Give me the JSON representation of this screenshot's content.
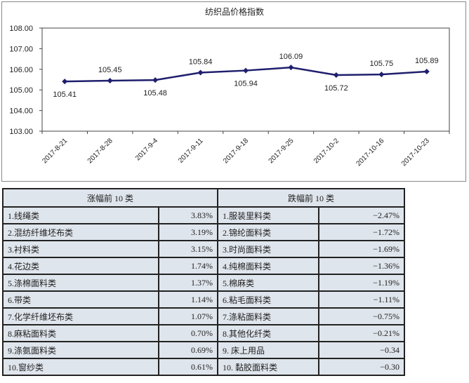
{
  "chart_data": {
    "type": "line",
    "title": "纺织品价格指数",
    "categories": [
      "2017-8-21",
      "2017-8-28",
      "2017-9-4",
      "2017-9-11",
      "2017-9-18",
      "2017-9-25",
      "2017-10-2",
      "2017-10-16",
      "2017-10-23"
    ],
    "values": [
      105.41,
      105.45,
      105.48,
      105.84,
      105.94,
      106.09,
      105.72,
      105.75,
      105.89
    ],
    "data_labels": [
      "105.41",
      "105.45",
      "105.48",
      "105.84",
      "105.94",
      "106.09",
      "105.72",
      "105.75",
      "105.89"
    ],
    "ylim": [
      103,
      108
    ],
    "yticks": [
      "103.00",
      "104.00",
      "105.00",
      "106.00",
      "107.00",
      "108.00"
    ],
    "grid": false,
    "line_color": "#1f1f6e"
  },
  "table": {
    "rise_header": "涨幅前 10 类",
    "fall_header": "跌幅前 10 类",
    "rows": [
      {
        "rise_name": "1.线绳类",
        "rise_value": "3.83%",
        "fall_name": "1.服装里料类",
        "fall_value": "−2.47%"
      },
      {
        "rise_name": "2.混纺纤维坯布类",
        "rise_value": "3.19%",
        "fall_name": "2.锦纶面料类",
        "fall_value": "−1.72%"
      },
      {
        "rise_name": "3.衬料类",
        "rise_value": "3.15%",
        "fall_name": "3.时尚面料类",
        "fall_value": "−1.69%"
      },
      {
        "rise_name": "4.花边类",
        "rise_value": "1.74%",
        "fall_name": "4.纯棉面料类",
        "fall_value": "−1.36%"
      },
      {
        "rise_name": "5.涤棉面料类",
        "rise_value": "1.37%",
        "fall_name": "5.棉麻类",
        "fall_value": "−1.19%"
      },
      {
        "rise_name": "6.带类",
        "rise_value": "1.14%",
        "fall_name": "6.粘毛面料类",
        "fall_value": "−1.11%"
      },
      {
        "rise_name": "7.化学纤维坯布类",
        "rise_value": "1.07%",
        "fall_name": "7.涤粘面料类",
        "fall_value": "−0.75%"
      },
      {
        "rise_name": "8.麻粘面料类",
        "rise_value": "0.70%",
        "fall_name": "8.其他化纤类",
        "fall_value": "−0.21%"
      },
      {
        "rise_name": "9.涤氨面料类",
        "rise_value": "0.69%",
        "fall_name": "9.  床上用品",
        "fall_value": "−0.34"
      },
      {
        "rise_name": "10.窗纱类",
        "rise_value": "0.61%",
        "fall_name": "10.  黏胶面料类",
        "fall_value": "−0.30"
      }
    ]
  }
}
